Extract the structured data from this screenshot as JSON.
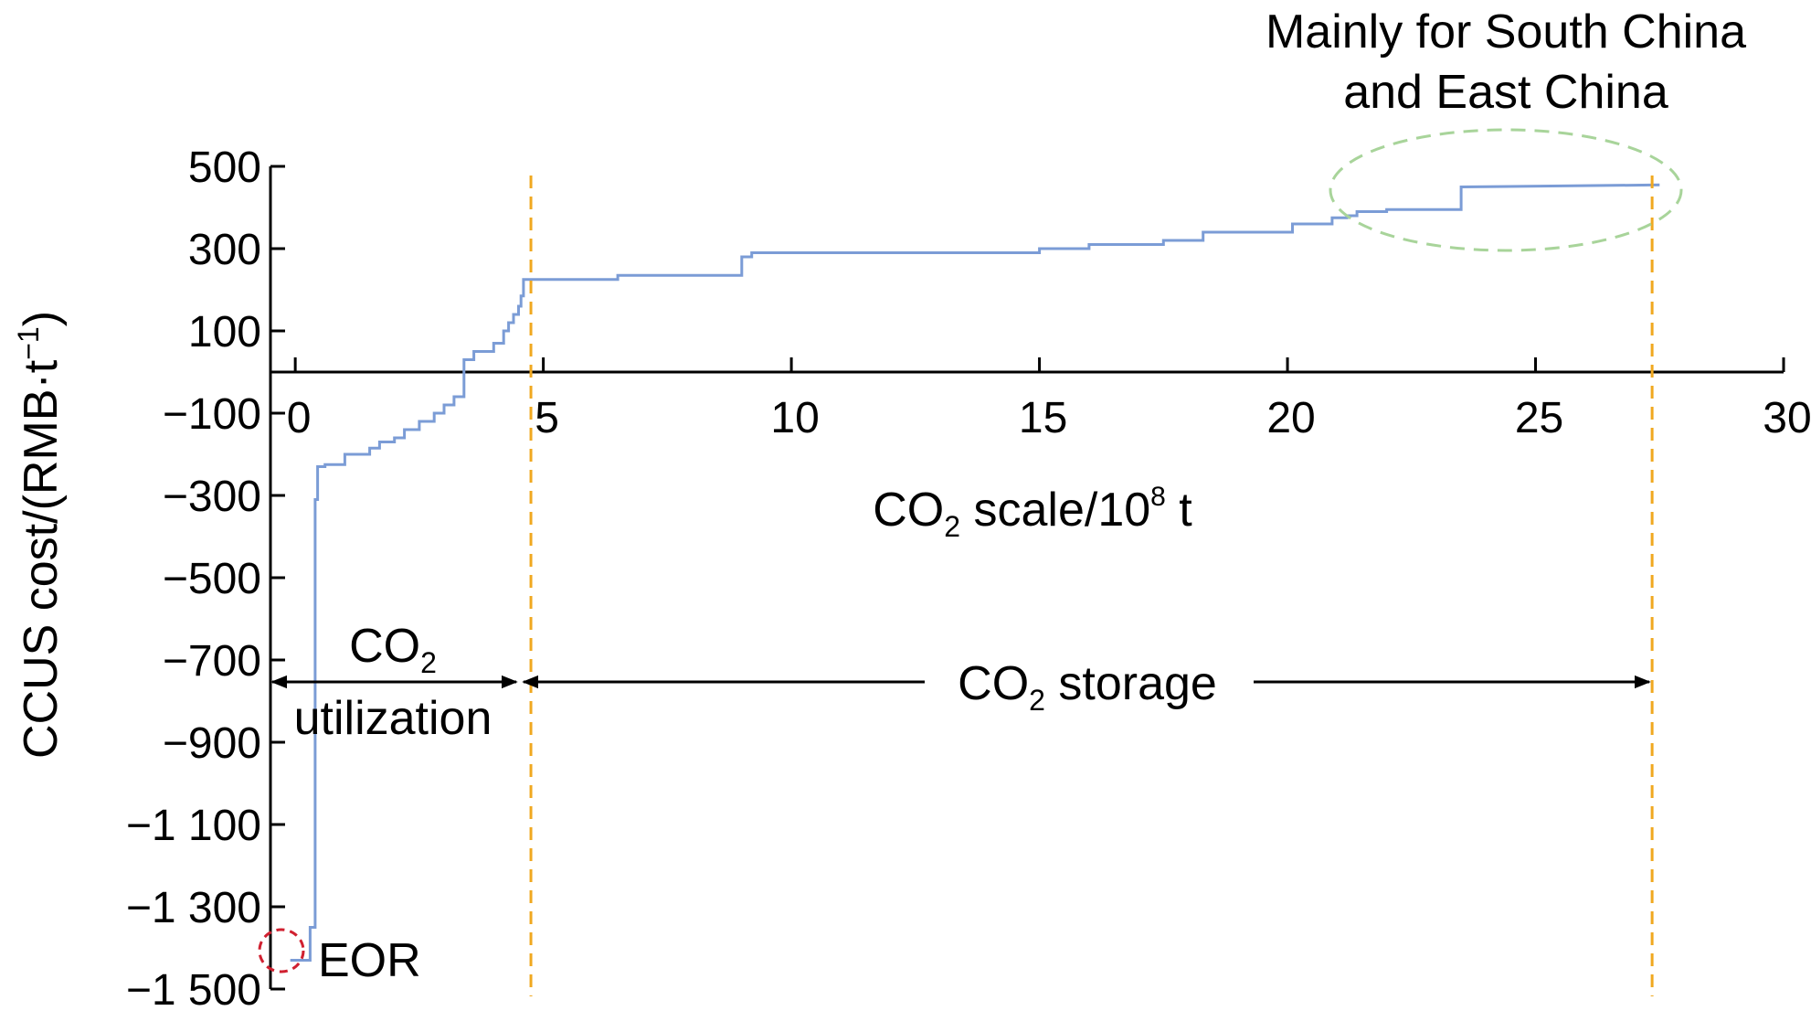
{
  "chart_data": {
    "type": "line",
    "step": true,
    "xlabel": {
      "main": "CO",
      "sub": "2",
      "rest": " scale/10",
      "sup": "8",
      "unit": " t"
    },
    "ylabel": {
      "main": "CCUS cost/(RMB·t",
      "sup": "−1",
      "close": ")"
    },
    "xlim": [
      -0.5,
      30
    ],
    "ylim": [
      -1500,
      500
    ],
    "x_ticks": [
      0,
      5,
      10,
      15,
      20,
      25,
      30
    ],
    "x_tick_labels": [
      "0",
      "5",
      "10",
      "15",
      "20",
      "25",
      "30"
    ],
    "y_ticks": [
      500,
      300,
      100,
      -100,
      -300,
      -500,
      -700,
      -900,
      -1100,
      -1300,
      -1500
    ],
    "y_tick_labels": [
      "500",
      "300",
      "100",
      "−100",
      "−300",
      "−500",
      "−700",
      "−900",
      "−1 100",
      "−1 300",
      "−1 500"
    ],
    "line_color": "#7b9cd6",
    "series": [
      {
        "x": [
          -0.1,
          0.3,
          0.3,
          0.4,
          0.4,
          0.45,
          0.45,
          0.6,
          0.6,
          1.0,
          1.0,
          1.5,
          1.5,
          1.7,
          1.7,
          2.0,
          2.0,
          2.2,
          2.2,
          2.5,
          2.5,
          2.8,
          2.8,
          3.0,
          3.0,
          3.2,
          3.2,
          3.4,
          3.4,
          3.6,
          3.6,
          4.0,
          4.0,
          4.2,
          4.2,
          4.3,
          4.3,
          4.4,
          4.4,
          4.5,
          4.5,
          4.55,
          4.55,
          4.6,
          4.6,
          6.5,
          6.5,
          9.0,
          9.0,
          9.2,
          9.2,
          15.0,
          15.0,
          16.0,
          16.0,
          17.5,
          17.5,
          18.3,
          18.3,
          20.1,
          20.1,
          20.9,
          20.9,
          21.2,
          21.2,
          21.4,
          21.4,
          22.0,
          22.0,
          23.5,
          23.5,
          27.5
        ],
        "y": [
          -1430,
          -1430,
          -1350,
          -1350,
          -310,
          -310,
          -230,
          -230,
          -225,
          -225,
          -200,
          -200,
          -185,
          -185,
          -170,
          -170,
          -160,
          -160,
          -140,
          -140,
          -120,
          -120,
          -100,
          -100,
          -80,
          -80,
          -60,
          -60,
          30,
          30,
          50,
          50,
          70,
          70,
          100,
          100,
          120,
          120,
          140,
          140,
          160,
          160,
          185,
          185,
          225,
          225,
          235,
          235,
          280,
          280,
          290,
          290,
          300,
          300,
          310,
          310,
          320,
          320,
          340,
          340,
          360,
          360,
          375,
          375,
          380,
          380,
          390,
          390,
          395,
          395,
          450,
          455
        ]
      }
    ],
    "boundaries": [
      4.75,
      27.35
    ],
    "boundary_color": "#f0a820",
    "ranges": {
      "utilization": {
        "label_main": "CO",
        "label_sub": "2",
        "label_line2": "utilization"
      },
      "storage": {
        "label_main": "CO",
        "label_sub": "2",
        "label_rest": " storage"
      }
    },
    "eor_label": "EOR",
    "eor_circle_color": "#d02030",
    "region_note": {
      "line1": "Mainly for South China",
      "line2": "and East China"
    },
    "region_ellipse_color": "#a8d49a",
    "grid": false,
    "legend": "none"
  }
}
